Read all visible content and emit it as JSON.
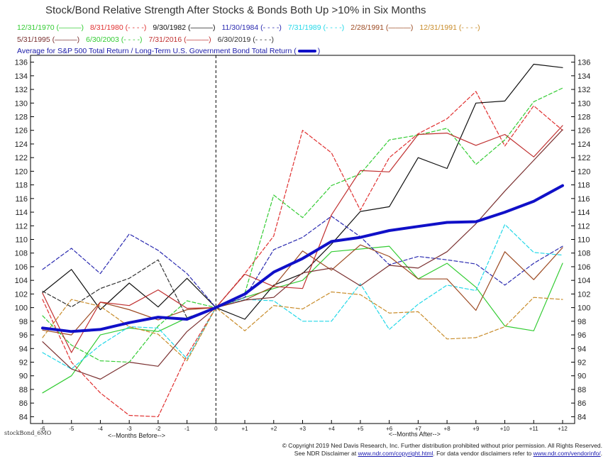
{
  "chart_data": {
    "type": "line",
    "title": "Stock/Bond Relative Strength After Stocks & Bonds Both Up >10% in Six Months",
    "x": [
      -6,
      -5,
      -4,
      -3,
      -2,
      -1,
      0,
      1,
      2,
      3,
      4,
      5,
      6,
      7,
      8,
      9,
      10,
      11,
      12
    ],
    "x_tick_labels": [
      "-6",
      "-5",
      "-4",
      "-3",
      "-2",
      "-1",
      "0",
      "+1",
      "+2",
      "+3",
      "+4",
      "+5",
      "+6",
      "+7",
      "+8",
      "+9",
      "+10",
      "+11",
      "+12"
    ],
    "xlabel_before": "<--Months Before-->",
    "xlabel_after": "<--Months After-->",
    "ylim": [
      83,
      137
    ],
    "y_ticks": [
      84,
      86,
      88,
      90,
      92,
      94,
      96,
      98,
      100,
      102,
      104,
      106,
      108,
      110,
      112,
      114,
      116,
      118,
      120,
      122,
      124,
      126,
      128,
      130,
      132,
      134,
      136
    ],
    "grid": false,
    "legend_placement": "top",
    "series": [
      {
        "name": "12/31/1970",
        "color": "#33cc33",
        "dash": "solid",
        "values": [
          87.5,
          90,
          96,
          97,
          96.5,
          98.5,
          100,
          101.5,
          102.8,
          104,
          108.2,
          108.6,
          109,
          104.2,
          106.5,
          103,
          97.3,
          96.6,
          106.5
        ]
      },
      {
        "name": "8/31/1980",
        "color": "#e03030",
        "dash": "dashed",
        "values": [
          101.2,
          92,
          87.5,
          84.2,
          84,
          93,
          100,
          105,
          110.5,
          126,
          122.7,
          114.3,
          122,
          125.5,
          127.7,
          131.7,
          123.7,
          129.6,
          126
        ]
      },
      {
        "name": "9/30/1982",
        "color": "#111111",
        "dash": "solid",
        "values": [
          102.2,
          105.6,
          99.7,
          103.6,
          100.1,
          104.3,
          100,
          98.3,
          103.3,
          105,
          109.3,
          114.1,
          114.8,
          122,
          120.4,
          130,
          130.3,
          135.7,
          135.2
        ]
      },
      {
        "name": "11/30/1984",
        "color": "#2a2ab0",
        "dash": "dashed",
        "values": [
          105.6,
          108.7,
          105,
          110.8,
          108.4,
          105,
          100,
          101.5,
          108.5,
          110.3,
          113.4,
          110.4,
          106.3,
          107.5,
          107,
          106.4,
          103.3,
          106.5,
          109
        ]
      },
      {
        "name": "7/31/1989",
        "color": "#22d8e8",
        "dash": "dashed",
        "values": [
          93.4,
          91,
          94.5,
          97.2,
          97,
          92.5,
          100,
          101.2,
          101,
          98,
          98,
          103.5,
          96.8,
          100.5,
          103.3,
          102.5,
          112.2,
          108.1,
          107.7
        ]
      },
      {
        "name": "2/28/1991",
        "color": "#9c4a22",
        "dash": "solid",
        "values": [
          96.7,
          96,
          100.8,
          99.7,
          98.2,
          99.7,
          100,
          101.1,
          103.1,
          108.3,
          105.5,
          109.2,
          107.5,
          104.2,
          104.2,
          99.6,
          108.2,
          104.1,
          108.8
        ]
      },
      {
        "name": "12/31/1991",
        "color": "#c88c2a",
        "dash": "dashed",
        "values": [
          95.6,
          101.2,
          100.2,
          97.2,
          96.1,
          92.2,
          100,
          96.6,
          100.3,
          99.8,
          102.3,
          101.9,
          99.2,
          99.4,
          95.4,
          95.6,
          97.2,
          101.5,
          101.2
        ]
      },
      {
        "name": "5/31/1995",
        "color": "#7a3030",
        "dash": "solid",
        "values": [
          95,
          91,
          89.5,
          92,
          91.4,
          96.5,
          100,
          101.1,
          101.5,
          105.1,
          105.8,
          103.2,
          106.2,
          105.8,
          108.2,
          112.3,
          117.1,
          121.6,
          126.1
        ]
      },
      {
        "name": "6/30/2003",
        "color": "#33cc33",
        "dash": "dashed",
        "values": [
          98.8,
          94.5,
          92.2,
          92,
          97.3,
          101,
          100,
          102.1,
          116.5,
          113.2,
          117.9,
          119.6,
          124.6,
          125.3,
          126.3,
          121,
          124.6,
          130.2,
          132.2
        ]
      },
      {
        "name": "7/31/2016",
        "color": "#c03030",
        "dash": "solid",
        "values": [
          102.1,
          93.4,
          100.8,
          100.3,
          102.6,
          99.9,
          100,
          104.9,
          103.1,
          102.8,
          113.6,
          120.1,
          119.9,
          125.4,
          125.6,
          123.8,
          125.4,
          122.1,
          126.7
        ]
      },
      {
        "name": "6/30/2019",
        "color": "#333333",
        "dash": "dashed",
        "values": [
          102.4,
          100.1,
          102.8,
          104.3,
          107,
          98.5,
          100,
          null,
          null,
          null,
          null,
          null,
          null,
          null,
          null,
          null,
          null,
          null,
          null
        ]
      },
      {
        "name": "Average for S&P 500 Total Return / Long-Term U.S. Government Bond Total Return",
        "color": "#1010c8",
        "dash": "solid",
        "bold": true,
        "values": [
          97,
          96.5,
          96.8,
          97.8,
          98.6,
          98.3,
          100,
          102,
          105.2,
          107.2,
          109.7,
          110.3,
          111.3,
          111.9,
          112.5,
          112.6,
          114,
          115.6,
          117.9
        ]
      }
    ]
  },
  "legend": {
    "rows": [
      [
        {
          "label": "12/31/1970",
          "color": "#33cc33",
          "swatch": "———"
        },
        {
          "label": "8/31/1980",
          "color": "#e03030",
          "swatch": "- - - -"
        },
        {
          "label": "9/30/1982",
          "color": "#111111",
          "swatch": "———"
        },
        {
          "label": "11/30/1984",
          "color": "#2a2ab0",
          "swatch": "- - - -"
        },
        {
          "label": "7/31/1989",
          "color": "#22d8e8",
          "swatch": "- - - -"
        },
        {
          "label": "2/28/1991",
          "color": "#9c4a22",
          "swatch": "———"
        },
        {
          "label": "12/31/1991",
          "color": "#c88c2a",
          "swatch": "- - - -"
        }
      ],
      [
        {
          "label": "5/31/1995",
          "color": "#7a3030",
          "swatch": "———"
        },
        {
          "label": "6/30/2003",
          "color": "#33cc33",
          "swatch": "- - - -"
        },
        {
          "label": "7/31/2016",
          "color": "#c03030",
          "swatch": "———"
        },
        {
          "label": "6/30/2019",
          "color": "#333333",
          "swatch": "- - - -"
        }
      ]
    ],
    "average_label": "Average for S&P 500 Total Return / Long-Term U.S. Government Bond Total Return"
  },
  "stamp": "stockBond_6MO",
  "footer": {
    "line1": "© Copyright 2019 Ned Davis Research, Inc. Further distribution prohibited without prior permission. All Rights Reserved.",
    "line2_prefix": "See NDR Disclaimer at",
    "link1": "www.ndr.com/copyright.html",
    "line2_middle": ". For data vendor disclaimers refer to",
    "link2": "www.ndr.com/vendorinfo/",
    "line2_suffix": "."
  }
}
